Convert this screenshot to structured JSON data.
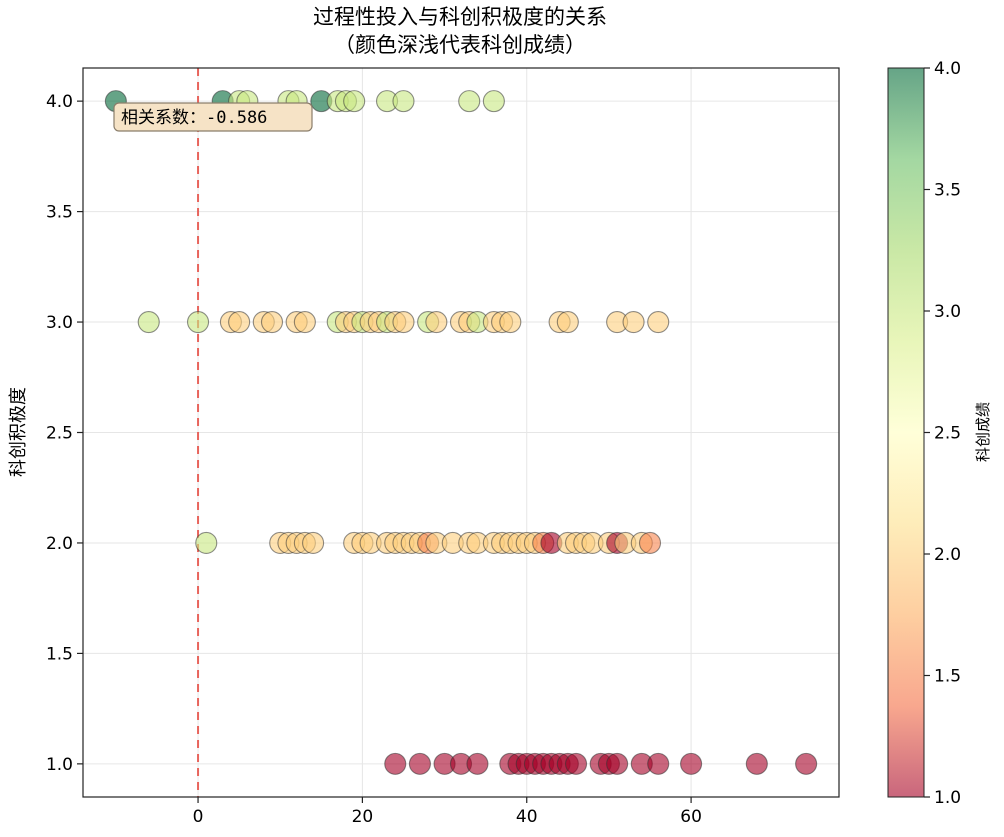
{
  "chart_data": {
    "type": "scatter",
    "title": "过程性投入与科创积极度的关系",
    "subtitle": "（颜色深浅代表科创成绩）",
    "xlabel": "",
    "ylabel": "科创积极度",
    "xlim": [
      -14,
      78
    ],
    "ylim": [
      0.85,
      4.15
    ],
    "x_ticks": [
      0,
      20,
      40,
      60
    ],
    "y_ticks": [
      1.0,
      1.5,
      2.0,
      2.5,
      3.0,
      3.5,
      4.0
    ],
    "grid": true,
    "reference_line": {
      "orientation": "vertical",
      "x": 0,
      "style": "dashed",
      "color": "#e8645c"
    },
    "annotation": {
      "text": "相关系数：-0.586",
      "position": "top-left"
    },
    "colorbar": {
      "label": "科创成绩",
      "range": [
        1.0,
        4.0
      ],
      "ticks": [
        1.0,
        1.5,
        2.0,
        2.5,
        3.0,
        3.5,
        4.0
      ],
      "colormap": "RdYlGn",
      "stops": [
        "#a50026",
        "#f46d43",
        "#fdae61",
        "#fee08b",
        "#ffffbf",
        "#d9ef8b",
        "#a6d96a",
        "#66bd63",
        "#006837"
      ]
    },
    "points": [
      {
        "x": -10,
        "y": 4,
        "c": 4
      },
      {
        "x": 3,
        "y": 4,
        "c": 4
      },
      {
        "x": 5,
        "y": 4,
        "c": 3
      },
      {
        "x": 6,
        "y": 4,
        "c": 3
      },
      {
        "x": 11,
        "y": 4,
        "c": 3
      },
      {
        "x": 12,
        "y": 4,
        "c": 3
      },
      {
        "x": 15,
        "y": 4,
        "c": 4
      },
      {
        "x": 17,
        "y": 4,
        "c": 3
      },
      {
        "x": 18,
        "y": 4,
        "c": 3
      },
      {
        "x": 19,
        "y": 4,
        "c": 3
      },
      {
        "x": 23,
        "y": 4,
        "c": 3
      },
      {
        "x": 25,
        "y": 4,
        "c": 3
      },
      {
        "x": 33,
        "y": 4,
        "c": 3
      },
      {
        "x": 36,
        "y": 4,
        "c": 3
      },
      {
        "x": -6,
        "y": 3,
        "c": 3
      },
      {
        "x": 0,
        "y": 3,
        "c": 3
      },
      {
        "x": 4,
        "y": 3,
        "c": 2
      },
      {
        "x": 5,
        "y": 3,
        "c": 2
      },
      {
        "x": 8,
        "y": 3,
        "c": 2
      },
      {
        "x": 9,
        "y": 3,
        "c": 2
      },
      {
        "x": 12,
        "y": 3,
        "c": 2
      },
      {
        "x": 13,
        "y": 3,
        "c": 2
      },
      {
        "x": 17,
        "y": 3,
        "c": 3
      },
      {
        "x": 18,
        "y": 3,
        "c": 2
      },
      {
        "x": 19,
        "y": 3,
        "c": 2
      },
      {
        "x": 20,
        "y": 3,
        "c": 3
      },
      {
        "x": 21,
        "y": 3,
        "c": 2
      },
      {
        "x": 22,
        "y": 3,
        "c": 2
      },
      {
        "x": 23,
        "y": 3,
        "c": 3
      },
      {
        "x": 24,
        "y": 3,
        "c": 2
      },
      {
        "x": 25,
        "y": 3,
        "c": 2
      },
      {
        "x": 28,
        "y": 3,
        "c": 3
      },
      {
        "x": 29,
        "y": 3,
        "c": 2
      },
      {
        "x": 32,
        "y": 3,
        "c": 2
      },
      {
        "x": 33,
        "y": 3,
        "c": 2
      },
      {
        "x": 34,
        "y": 3,
        "c": 3
      },
      {
        "x": 36,
        "y": 3,
        "c": 2
      },
      {
        "x": 37,
        "y": 3,
        "c": 2
      },
      {
        "x": 38,
        "y": 3,
        "c": 2
      },
      {
        "x": 44,
        "y": 3,
        "c": 2
      },
      {
        "x": 45,
        "y": 3,
        "c": 2
      },
      {
        "x": 51,
        "y": 3,
        "c": 2
      },
      {
        "x": 53,
        "y": 3,
        "c": 2
      },
      {
        "x": 56,
        "y": 3,
        "c": 2
      },
      {
        "x": 1,
        "y": 2,
        "c": 3
      },
      {
        "x": 10,
        "y": 2,
        "c": 2
      },
      {
        "x": 11,
        "y": 2,
        "c": 2
      },
      {
        "x": 12,
        "y": 2,
        "c": 2
      },
      {
        "x": 13,
        "y": 2,
        "c": 2
      },
      {
        "x": 14,
        "y": 2,
        "c": 2
      },
      {
        "x": 19,
        "y": 2,
        "c": 2
      },
      {
        "x": 20,
        "y": 2,
        "c": 2
      },
      {
        "x": 21,
        "y": 2,
        "c": 2
      },
      {
        "x": 23,
        "y": 2,
        "c": 2
      },
      {
        "x": 24,
        "y": 2,
        "c": 2
      },
      {
        "x": 25,
        "y": 2,
        "c": 2
      },
      {
        "x": 26,
        "y": 2,
        "c": 2
      },
      {
        "x": 27,
        "y": 2,
        "c": 2
      },
      {
        "x": 28,
        "y": 2,
        "c": 1.5
      },
      {
        "x": 29,
        "y": 2,
        "c": 2
      },
      {
        "x": 31,
        "y": 2,
        "c": 2
      },
      {
        "x": 33,
        "y": 2,
        "c": 2
      },
      {
        "x": 34,
        "y": 2,
        "c": 2
      },
      {
        "x": 36,
        "y": 2,
        "c": 2
      },
      {
        "x": 37,
        "y": 2,
        "c": 2
      },
      {
        "x": 38,
        "y": 2,
        "c": 2
      },
      {
        "x": 39,
        "y": 2,
        "c": 2
      },
      {
        "x": 40,
        "y": 2,
        "c": 2
      },
      {
        "x": 41,
        "y": 2,
        "c": 2
      },
      {
        "x": 42,
        "y": 2,
        "c": 1.5
      },
      {
        "x": 43,
        "y": 2,
        "c": 1
      },
      {
        "x": 45,
        "y": 2,
        "c": 2
      },
      {
        "x": 46,
        "y": 2,
        "c": 2
      },
      {
        "x": 47,
        "y": 2,
        "c": 2
      },
      {
        "x": 48,
        "y": 2,
        "c": 2
      },
      {
        "x": 50,
        "y": 2,
        "c": 2
      },
      {
        "x": 51,
        "y": 2,
        "c": 1
      },
      {
        "x": 52,
        "y": 2,
        "c": 2
      },
      {
        "x": 54,
        "y": 2,
        "c": 2
      },
      {
        "x": 55,
        "y": 2,
        "c": 1.5
      },
      {
        "x": 24,
        "y": 1,
        "c": 1
      },
      {
        "x": 27,
        "y": 1,
        "c": 1
      },
      {
        "x": 30,
        "y": 1,
        "c": 1
      },
      {
        "x": 32,
        "y": 1,
        "c": 1
      },
      {
        "x": 34,
        "y": 1,
        "c": 1
      },
      {
        "x": 38,
        "y": 1,
        "c": 1
      },
      {
        "x": 39,
        "y": 1,
        "c": 1
      },
      {
        "x": 40,
        "y": 1,
        "c": 1
      },
      {
        "x": 41,
        "y": 1,
        "c": 1
      },
      {
        "x": 42,
        "y": 1,
        "c": 1
      },
      {
        "x": 43,
        "y": 1,
        "c": 1
      },
      {
        "x": 44,
        "y": 1,
        "c": 1
      },
      {
        "x": 45,
        "y": 1,
        "c": 1
      },
      {
        "x": 46,
        "y": 1,
        "c": 1
      },
      {
        "x": 49,
        "y": 1,
        "c": 1
      },
      {
        "x": 50,
        "y": 1,
        "c": 1
      },
      {
        "x": 51,
        "y": 1,
        "c": 1
      },
      {
        "x": 54,
        "y": 1,
        "c": 1
      },
      {
        "x": 56,
        "y": 1,
        "c": 1
      },
      {
        "x": 60,
        "y": 1,
        "c": 1
      },
      {
        "x": 68,
        "y": 1,
        "c": 1
      },
      {
        "x": 74,
        "y": 1,
        "c": 1
      }
    ]
  }
}
